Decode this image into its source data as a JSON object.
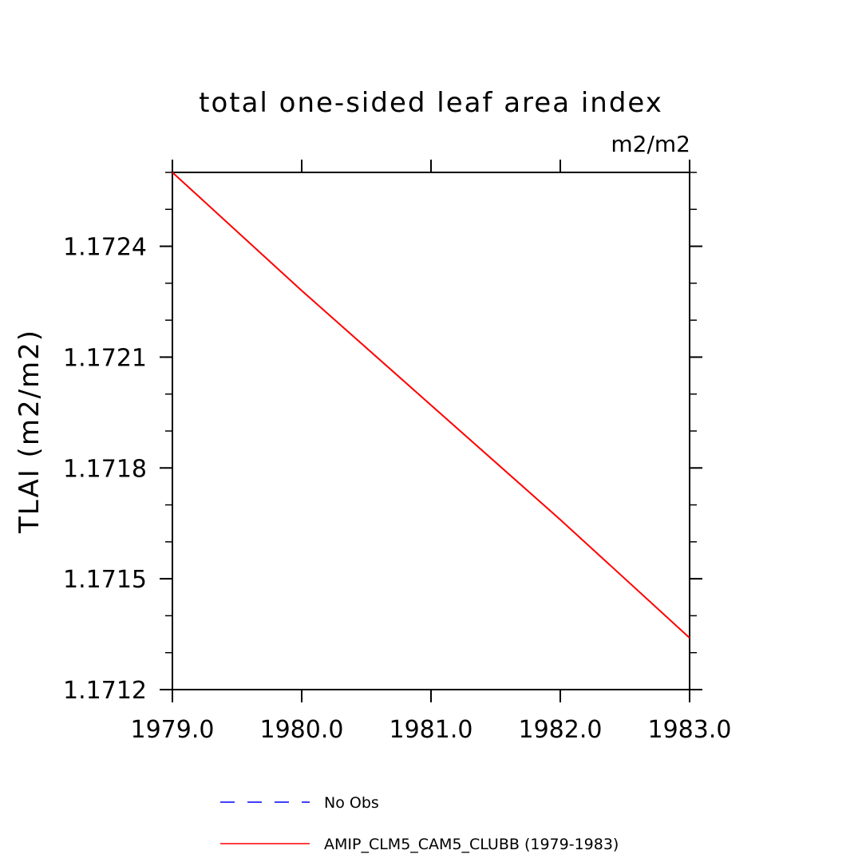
{
  "chart_data": {
    "type": "line",
    "title": "total one-sided leaf area index",
    "units_label": "m2/m2",
    "ylabel": "TLAI  (m2/m2)",
    "xlim": [
      1979.0,
      1983.0
    ],
    "ylim": [
      1.1712,
      1.1726
    ],
    "x_ticks": [
      1979.0,
      1980.0,
      1981.0,
      1982.0,
      1983.0
    ],
    "x_tick_labels": [
      "1979.0",
      "1980.0",
      "1981.0",
      "1982.0",
      "1983.0"
    ],
    "y_ticks": [
      1.1712,
      1.1715,
      1.1718,
      1.1721,
      1.1724
    ],
    "y_tick_labels": [
      "1.1712",
      "1.1715",
      "1.1718",
      "1.1721",
      "1.1724"
    ],
    "grid": false,
    "legend_position": "bottom",
    "series": [
      {
        "name": "No Obs",
        "color": "#0000ff",
        "style": "dashed",
        "x": [],
        "y": []
      },
      {
        "name": "AMIP_CLM5_CAM5_CLUBB (1979-1983)",
        "color": "#ff0000",
        "style": "solid",
        "x": [
          1979.0,
          1980.0,
          1981.0,
          1982.0,
          1983.0
        ],
        "y": [
          1.1726,
          1.17228,
          1.17197,
          1.17166,
          1.17134
        ]
      }
    ]
  }
}
